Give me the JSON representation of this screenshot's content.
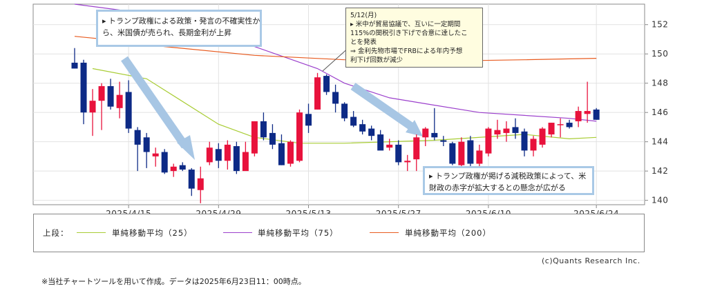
{
  "chart_data": {
    "type": "candlestick",
    "title": "",
    "ylim": [
      139.7,
      153.4
    ],
    "y_ticks": [
      140,
      142,
      144,
      146,
      148,
      150,
      152
    ],
    "x_tick_labels": [
      "2025/4/15",
      "2025/4/29",
      "2025/5/13",
      "2025/5/27",
      "2025/6/10",
      "2025/6/24"
    ],
    "up_color": "#e8123c",
    "down_color": "#0d2a86",
    "candles": [
      {
        "o": 149.4,
        "h": 150.4,
        "l": 149.0,
        "c": 149.0
      },
      {
        "o": 149.4,
        "h": 149.6,
        "l": 145.2,
        "c": 146.0
      },
      {
        "o": 146.0,
        "h": 147.6,
        "l": 144.4,
        "c": 146.8
      },
      {
        "o": 146.8,
        "h": 148.0,
        "l": 144.8,
        "c": 147.8
      },
      {
        "o": 147.8,
        "h": 148.3,
        "l": 146.2,
        "c": 146.4
      },
      {
        "o": 146.3,
        "h": 148.1,
        "l": 145.6,
        "c": 147.2
      },
      {
        "o": 147.4,
        "h": 148.2,
        "l": 144.6,
        "c": 144.9
      },
      {
        "o": 144.8,
        "h": 145.0,
        "l": 142.0,
        "c": 143.8
      },
      {
        "o": 144.3,
        "h": 144.6,
        "l": 142.2,
        "c": 143.3
      },
      {
        "o": 143.0,
        "h": 143.6,
        "l": 142.3,
        "c": 143.2
      },
      {
        "o": 143.3,
        "h": 143.5,
        "l": 141.8,
        "c": 141.9
      },
      {
        "o": 142.0,
        "h": 142.5,
        "l": 141.6,
        "c": 142.3
      },
      {
        "o": 142.4,
        "h": 142.6,
        "l": 142.0,
        "c": 142.1
      },
      {
        "o": 142.1,
        "h": 142.2,
        "l": 140.3,
        "c": 140.8
      },
      {
        "o": 140.7,
        "h": 142.3,
        "l": 139.8,
        "c": 141.5
      },
      {
        "o": 142.6,
        "h": 144.0,
        "l": 142.4,
        "c": 143.6
      },
      {
        "o": 143.5,
        "h": 143.9,
        "l": 142.2,
        "c": 142.7
      },
      {
        "o": 142.7,
        "h": 144.1,
        "l": 142.1,
        "c": 143.8
      },
      {
        "o": 143.7,
        "h": 144.0,
        "l": 141.8,
        "c": 142.0
      },
      {
        "o": 142.0,
        "h": 144.0,
        "l": 142.1,
        "c": 143.3
      },
      {
        "o": 143.2,
        "h": 145.4,
        "l": 143.0,
        "c": 145.4
      },
      {
        "o": 145.4,
        "h": 146.0,
        "l": 144.1,
        "c": 144.3
      },
      {
        "o": 144.6,
        "h": 145.2,
        "l": 143.5,
        "c": 143.8
      },
      {
        "o": 143.9,
        "h": 144.5,
        "l": 142.4,
        "c": 142.4
      },
      {
        "o": 142.5,
        "h": 144.1,
        "l": 142.3,
        "c": 144.0
      },
      {
        "o": 142.7,
        "h": 146.2,
        "l": 142.6,
        "c": 146.0
      },
      {
        "o": 145.9,
        "h": 146.6,
        "l": 144.6,
        "c": 145.1
      },
      {
        "o": 146.2,
        "h": 148.7,
        "l": 146.2,
        "c": 148.4
      },
      {
        "o": 148.5,
        "h": 148.6,
        "l": 147.2,
        "c": 147.4
      },
      {
        "o": 147.4,
        "h": 147.9,
        "l": 146.0,
        "c": 146.6
      },
      {
        "o": 146.6,
        "h": 146.7,
        "l": 145.4,
        "c": 145.6
      },
      {
        "o": 145.7,
        "h": 146.1,
        "l": 145.0,
        "c": 145.1
      },
      {
        "o": 145.2,
        "h": 145.5,
        "l": 144.5,
        "c": 144.7
      },
      {
        "o": 144.9,
        "h": 145.1,
        "l": 144.1,
        "c": 144.4
      },
      {
        "o": 144.5,
        "h": 144.8,
        "l": 143.5,
        "c": 143.4
      },
      {
        "o": 143.6,
        "h": 144.2,
        "l": 143.4,
        "c": 143.8
      },
      {
        "o": 143.8,
        "h": 144.1,
        "l": 142.4,
        "c": 142.6
      },
      {
        "o": 142.6,
        "h": 143.1,
        "l": 142.0,
        "c": 142.7
      },
      {
        "o": 142.8,
        "h": 144.5,
        "l": 142.0,
        "c": 144.3
      },
      {
        "o": 144.3,
        "h": 145.0,
        "l": 143.7,
        "c": 144.9
      },
      {
        "o": 144.6,
        "h": 146.3,
        "l": 144.1,
        "c": 144.3
      },
      {
        "o": 144.1,
        "h": 144.4,
        "l": 143.7,
        "c": 144.0
      },
      {
        "o": 143.9,
        "h": 144.0,
        "l": 142.4,
        "c": 142.5
      },
      {
        "o": 142.4,
        "h": 144.3,
        "l": 142.2,
        "c": 144.0
      },
      {
        "o": 144.1,
        "h": 144.4,
        "l": 142.3,
        "c": 142.5
      },
      {
        "o": 142.5,
        "h": 143.8,
        "l": 142.2,
        "c": 143.4
      },
      {
        "o": 143.2,
        "h": 145.0,
        "l": 143.0,
        "c": 144.9
      },
      {
        "o": 144.5,
        "h": 145.5,
        "l": 144.2,
        "c": 144.8
      },
      {
        "o": 144.6,
        "h": 145.4,
        "l": 144.0,
        "c": 144.9
      },
      {
        "o": 145.0,
        "h": 145.6,
        "l": 144.2,
        "c": 144.6
      },
      {
        "o": 144.7,
        "h": 144.9,
        "l": 143.0,
        "c": 143.4
      },
      {
        "o": 143.4,
        "h": 144.4,
        "l": 143.0,
        "c": 144.2
      },
      {
        "o": 143.8,
        "h": 145.0,
        "l": 143.6,
        "c": 144.9
      },
      {
        "o": 144.5,
        "h": 145.3,
        "l": 144.3,
        "c": 145.3
      },
      {
        "o": 145.2,
        "h": 145.6,
        "l": 144.3,
        "c": 145.2
      },
      {
        "o": 145.3,
        "h": 145.5,
        "l": 144.9,
        "c": 145.0
      },
      {
        "o": 145.4,
        "h": 146.4,
        "l": 145.0,
        "c": 146.1
      },
      {
        "o": 145.9,
        "h": 148.1,
        "l": 145.3,
        "c": 146.1
      },
      {
        "o": 146.2,
        "h": 146.3,
        "l": 145.5,
        "c": 145.5
      }
    ],
    "series": [
      {
        "name": "単純移動平均（25）",
        "color": "#a8cc33",
        "x": [
          2,
          8,
          16,
          20,
          25,
          30,
          40,
          50,
          55,
          58
        ],
        "values": [
          149.0,
          148.3,
          145.2,
          144.3,
          143.9,
          143.9,
          144.1,
          144.5,
          144.2,
          144.3
        ]
      },
      {
        "name": "単純移動平均（75）",
        "color": "#9b3fcc",
        "x": [
          0,
          5,
          10,
          20,
          27,
          30,
          35,
          40,
          45,
          50,
          55,
          58
        ],
        "values": [
          153.4,
          153.0,
          152.0,
          150.5,
          149.0,
          148.0,
          147.0,
          146.5,
          146.0,
          145.8,
          145.6,
          145.4
        ]
      },
      {
        "name": "単純移動平均（200）",
        "color": "#e85a1e",
        "x": [
          0,
          5,
          10,
          20,
          30,
          40,
          50,
          58
        ],
        "values": [
          151.2,
          150.9,
          150.5,
          149.9,
          149.6,
          149.5,
          149.6,
          149.7
        ]
      }
    ]
  },
  "annotations": {
    "box1": {
      "lines": [
        "▸ トランプ政権による政策・発言の不確実性か",
        "ら、米国債が売られ、長期金利が上昇"
      ]
    },
    "box2": {
      "lines": [
        "5/12(月)",
        "▸ 米中が貿易協議で、互いに一定期間",
        "115%の関税引き下げで合意に達したこ",
        "とを発表",
        "⇒ 金利先物市場でFRBによる年内予想",
        "利下げ回数が減少"
      ]
    },
    "box3": {
      "lines": [
        "▸ トランプ政権が掲げる減税政策によって、米",
        "財政の赤字が拡大するとの懸念が広がる"
      ]
    }
  },
  "legend": {
    "prefix": "上段：",
    "items": [
      {
        "label": "単純移動平均（25）",
        "color": "#a8cc33"
      },
      {
        "label": "単純移動平均（75）",
        "color": "#9b3fcc"
      },
      {
        "label": "単純移動平均（200）",
        "color": "#e85a1e"
      }
    ]
  },
  "credit": "(c)Quants Research Inc.",
  "footnote": "※当社チャートツールを用いて作成。データは2025年6月23日11：00時点。"
}
